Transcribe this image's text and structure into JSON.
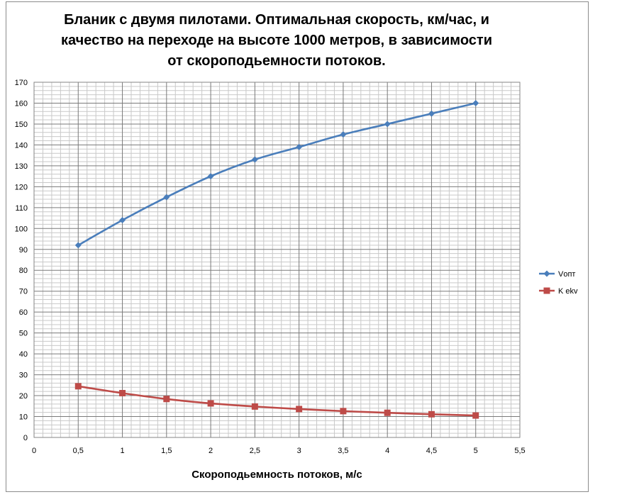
{
  "chart_data": {
    "type": "line",
    "title_lines": [
      "Бланик с двумя пилотами. Оптимальная скорость, км/час, и",
      "качество на переходе на высоте 1000 метров, в зависимости",
      "от скороподьемности потоков."
    ],
    "xlabel": "Скороподьемность потоков, м/с",
    "ylabel": "",
    "xlim": [
      0,
      5.5
    ],
    "ylim": [
      0,
      170
    ],
    "x_ticks": [
      0,
      0.5,
      1,
      1.5,
      2,
      2.5,
      3,
      3.5,
      4,
      4.5,
      5,
      5.5
    ],
    "x_tick_labels": [
      "0",
      "0,5",
      "1",
      "1,5",
      "2",
      "2,5",
      "3",
      "3,5",
      "4",
      "4,5",
      "5",
      "5,5"
    ],
    "y_ticks": [
      0,
      10,
      20,
      30,
      40,
      50,
      60,
      70,
      80,
      90,
      100,
      110,
      120,
      130,
      140,
      150,
      160,
      170
    ],
    "grid": true,
    "legend_position": "right",
    "series": [
      {
        "name": "Vопт",
        "color": "#4a7ebb",
        "marker": "diamond",
        "x": [
          0.5,
          1,
          1.5,
          2,
          2.5,
          3,
          3.5,
          4,
          4.5,
          5
        ],
        "values": [
          92,
          104,
          115,
          125,
          133,
          139,
          145,
          150,
          155,
          160
        ]
      },
      {
        "name": "K ekv",
        "color": "#be4b48",
        "marker": "square",
        "x": [
          0.5,
          1,
          1.5,
          2,
          2.5,
          3,
          3.5,
          4,
          4.5,
          5
        ],
        "values": [
          24.5,
          21.2,
          18.4,
          16.3,
          14.8,
          13.6,
          12.6,
          11.8,
          11.1,
          10.5
        ]
      }
    ]
  }
}
